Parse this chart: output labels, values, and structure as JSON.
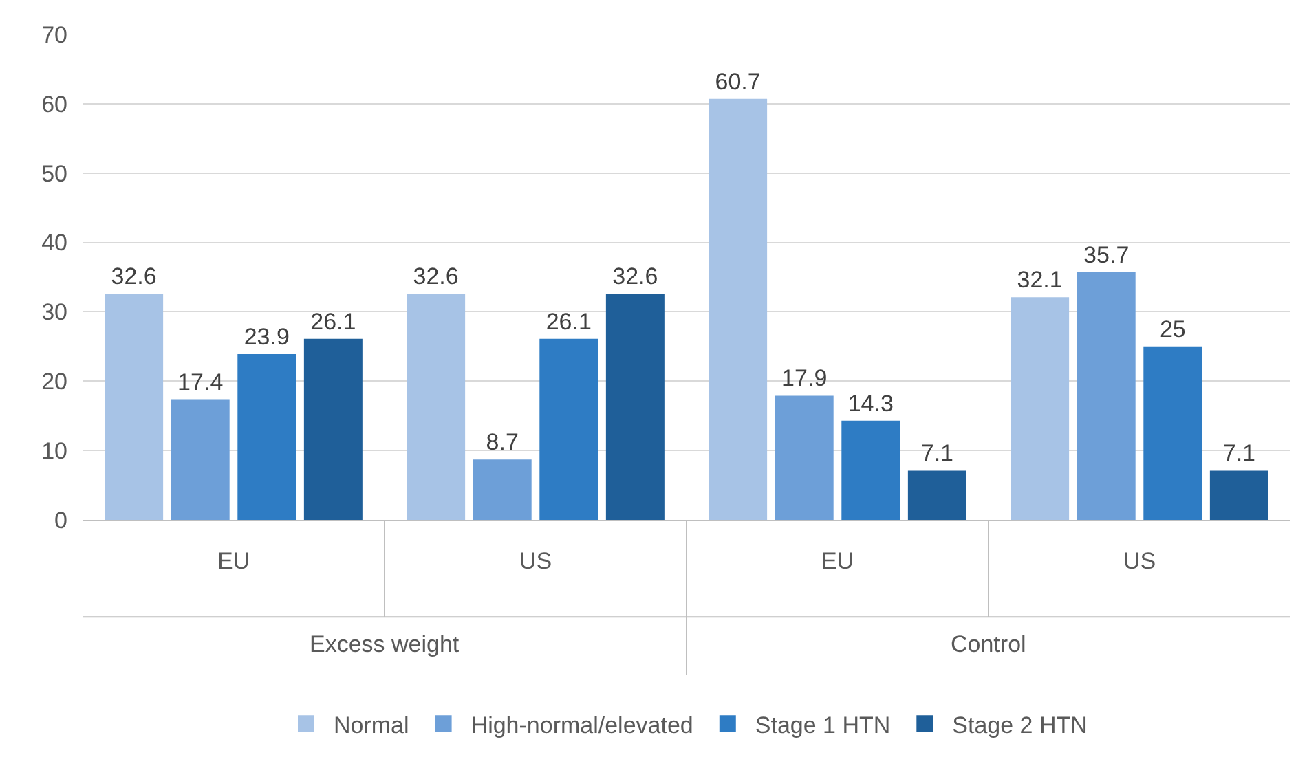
{
  "chart_data": {
    "type": "bar",
    "categories": [
      "EU",
      "US",
      "EU",
      "US"
    ],
    "series": [
      {
        "name": "Normal",
        "color": "#a7c3e6",
        "values": [
          32.6,
          32.6,
          60.7,
          32.1
        ]
      },
      {
        "name": "High-normal/elevated",
        "color": "#6d9fd8",
        "values": [
          17.4,
          8.7,
          17.9,
          35.7
        ]
      },
      {
        "name": "Stage 1 HTN",
        "color": "#2e7cc4",
        "values": [
          23.9,
          26.1,
          14.3,
          25
        ]
      },
      {
        "name": "Stage 2 HTN",
        "color": "#1f5f99",
        "values": [
          26.1,
          32.6,
          7.1,
          7.1
        ]
      }
    ],
    "annotations": [
      "Excess weight",
      "Control"
    ],
    "ylim": [
      0,
      70
    ],
    "yticks": [
      0,
      10,
      20,
      30,
      40,
      50,
      60,
      70
    ],
    "grid": "y",
    "legend": "bottom",
    "data_labels": true
  }
}
